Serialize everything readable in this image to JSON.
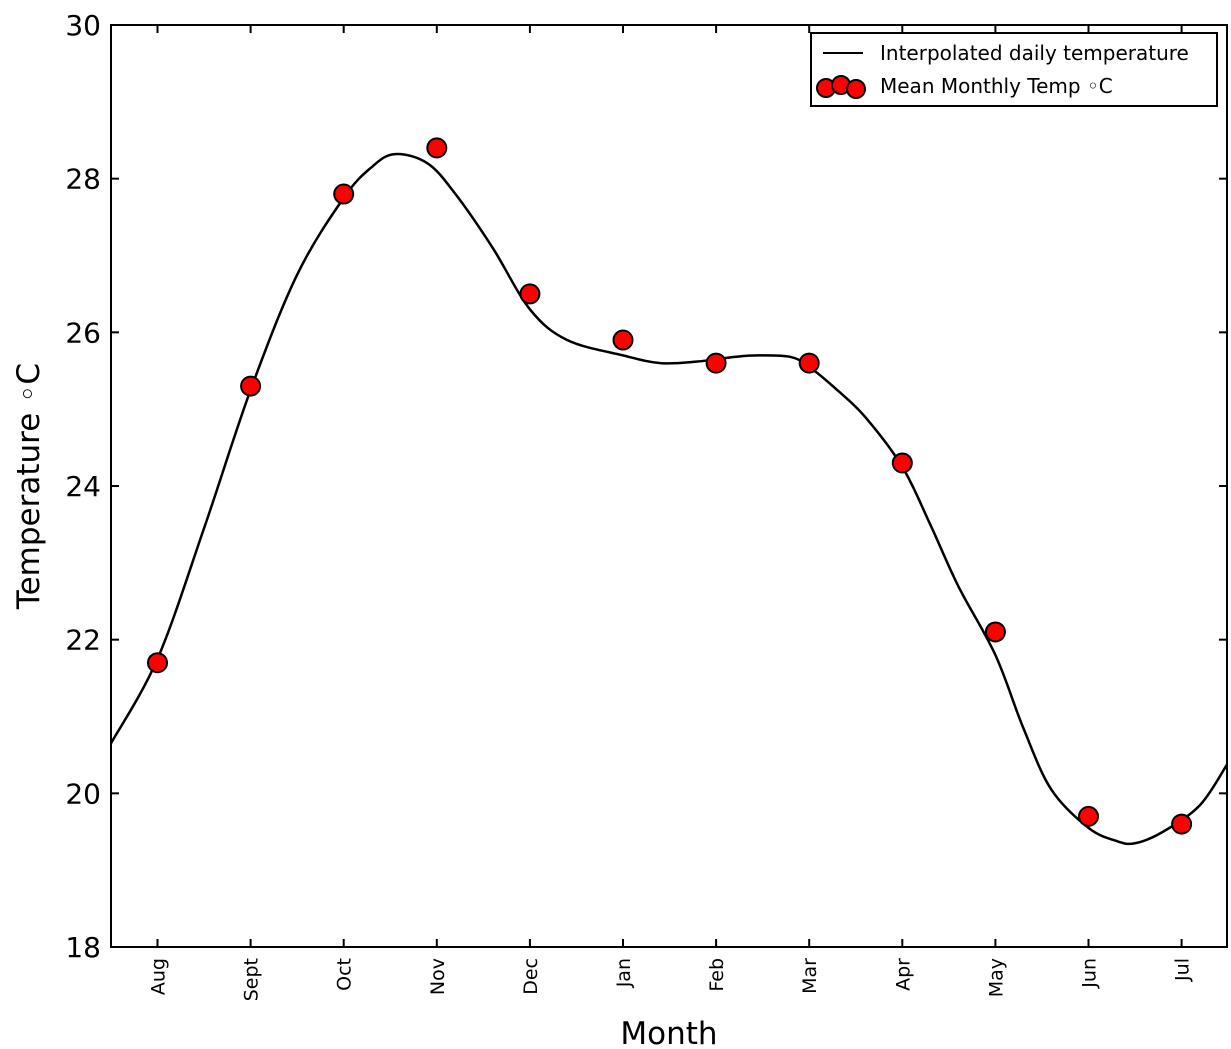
{
  "chart_data": {
    "type": "line",
    "xlabel": "Month",
    "ylabel": "Temperature ◦C",
    "ylim": [
      18,
      30
    ],
    "yticks": [
      "18",
      "20",
      "22",
      "24",
      "26",
      "28",
      "30"
    ],
    "grid": false,
    "legend_position": "top-right",
    "categories": [
      "Aug",
      "Sept",
      "Oct",
      "Nov",
      "Dec",
      "Jan",
      "Feb",
      "Mar",
      "Apr",
      "May",
      "Jun",
      "Jul"
    ],
    "series": [
      {
        "name": "Interpolated daily temperature",
        "kind": "line",
        "color": "#000000",
        "x": [
          -0.5,
          0,
          0.5,
          1,
          1.5,
          2,
          2.3,
          2.55,
          2.9,
          3.2,
          3.6,
          4,
          4.4,
          5,
          5.4,
          5.8,
          6.2,
          6.45,
          6.8,
          7,
          7.3,
          7.6,
          8,
          8.3,
          8.6,
          9,
          9.3,
          9.6,
          10,
          10.3,
          10.5,
          10.8,
          11.2,
          11.5
        ],
        "values": [
          20.65,
          21.75,
          23.45,
          25.25,
          26.75,
          27.75,
          28.15,
          28.32,
          28.2,
          27.8,
          27.1,
          26.3,
          25.9,
          25.7,
          25.6,
          25.62,
          25.68,
          25.7,
          25.68,
          25.55,
          25.25,
          24.9,
          24.25,
          23.5,
          22.7,
          21.8,
          20.85,
          20.05,
          19.55,
          19.38,
          19.35,
          19.5,
          19.85,
          20.4
        ]
      },
      {
        "name": "Mean Monthly Temp ◦C",
        "kind": "scatter",
        "color": "#ff0000",
        "x": [
          0,
          1,
          2,
          3,
          4,
          5,
          6,
          7,
          8,
          9,
          10,
          11
        ],
        "values": [
          21.7,
          25.3,
          27.8,
          28.4,
          26.5,
          25.9,
          25.6,
          25.6,
          24.3,
          22.1,
          19.7,
          19.6
        ]
      }
    ]
  }
}
